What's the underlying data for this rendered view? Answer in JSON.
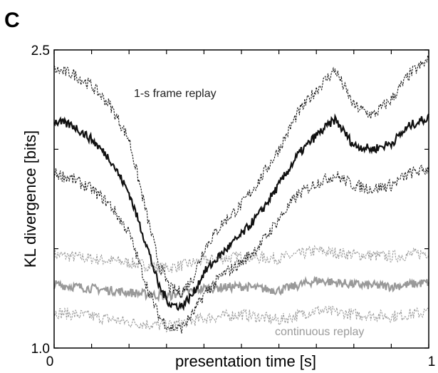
{
  "panel_label": "C",
  "chart_data": {
    "type": "line",
    "xlabel": "presentation time [s]",
    "ylabel": "KL divergence [bits]",
    "xlim": [
      0,
      1
    ],
    "ylim": [
      1.0,
      2.5
    ],
    "x_tick_labels": [
      "0",
      "1"
    ],
    "y_tick_labels": [
      "1.0",
      "2.5"
    ],
    "grid": false,
    "annotations": [
      "1-s frame replay",
      "continuous replay"
    ],
    "series": [
      {
        "name": "1-s frame replay",
        "color": "#111111",
        "mean": {
          "x": [
            0,
            0.05,
            0.1,
            0.15,
            0.2,
            0.25,
            0.28,
            0.31,
            0.34,
            0.37,
            0.4,
            0.45,
            0.5,
            0.55,
            0.6,
            0.65,
            0.7,
            0.75,
            0.8,
            0.85,
            0.9,
            0.95,
            1
          ],
          "y": [
            2.14,
            2.12,
            2.05,
            1.95,
            1.78,
            1.5,
            1.31,
            1.22,
            1.21,
            1.27,
            1.38,
            1.48,
            1.57,
            1.68,
            1.82,
            1.97,
            2.07,
            2.15,
            2.02,
            2.0,
            2.03,
            2.12,
            2.16
          ]
        },
        "upper": {
          "x": [
            0,
            0.05,
            0.1,
            0.15,
            0.2,
            0.25,
            0.28,
            0.31,
            0.34,
            0.37,
            0.4,
            0.45,
            0.5,
            0.55,
            0.6,
            0.65,
            0.7,
            0.75,
            0.8,
            0.85,
            0.9,
            0.95,
            1
          ],
          "y": [
            2.4,
            2.38,
            2.32,
            2.22,
            2.05,
            1.65,
            1.42,
            1.3,
            1.28,
            1.35,
            1.5,
            1.63,
            1.72,
            1.85,
            2.0,
            2.18,
            2.3,
            2.4,
            2.22,
            2.17,
            2.25,
            2.38,
            2.45
          ]
        },
        "lower": {
          "x": [
            0,
            0.05,
            0.1,
            0.15,
            0.2,
            0.25,
            0.28,
            0.31,
            0.34,
            0.37,
            0.4,
            0.45,
            0.5,
            0.55,
            0.6,
            0.65,
            0.7,
            0.75,
            0.8,
            0.85,
            0.9,
            0.95,
            1
          ],
          "y": [
            1.88,
            1.85,
            1.8,
            1.72,
            1.58,
            1.3,
            1.16,
            1.1,
            1.1,
            1.17,
            1.27,
            1.37,
            1.43,
            1.52,
            1.65,
            1.77,
            1.83,
            1.87,
            1.82,
            1.8,
            1.82,
            1.88,
            1.9
          ]
        }
      },
      {
        "name": "continuous replay",
        "color": "#999999",
        "mean": {
          "x": [
            0,
            0.1,
            0.2,
            0.3,
            0.4,
            0.5,
            0.6,
            0.7,
            0.8,
            0.9,
            1
          ],
          "y": [
            1.32,
            1.3,
            1.28,
            1.26,
            1.3,
            1.31,
            1.29,
            1.34,
            1.32,
            1.31,
            1.33
          ]
        },
        "upper": {
          "x": [
            0,
            0.1,
            0.2,
            0.3,
            0.4,
            0.5,
            0.6,
            0.7,
            0.8,
            0.9,
            1
          ],
          "y": [
            1.47,
            1.45,
            1.43,
            1.4,
            1.44,
            1.46,
            1.45,
            1.49,
            1.47,
            1.46,
            1.48
          ]
        },
        "lower": {
          "x": [
            0,
            0.1,
            0.2,
            0.3,
            0.4,
            0.5,
            0.6,
            0.7,
            0.8,
            0.9,
            1
          ],
          "y": [
            1.18,
            1.16,
            1.13,
            1.11,
            1.15,
            1.17,
            1.14,
            1.19,
            1.17,
            1.16,
            1.18
          ]
        }
      }
    ]
  }
}
